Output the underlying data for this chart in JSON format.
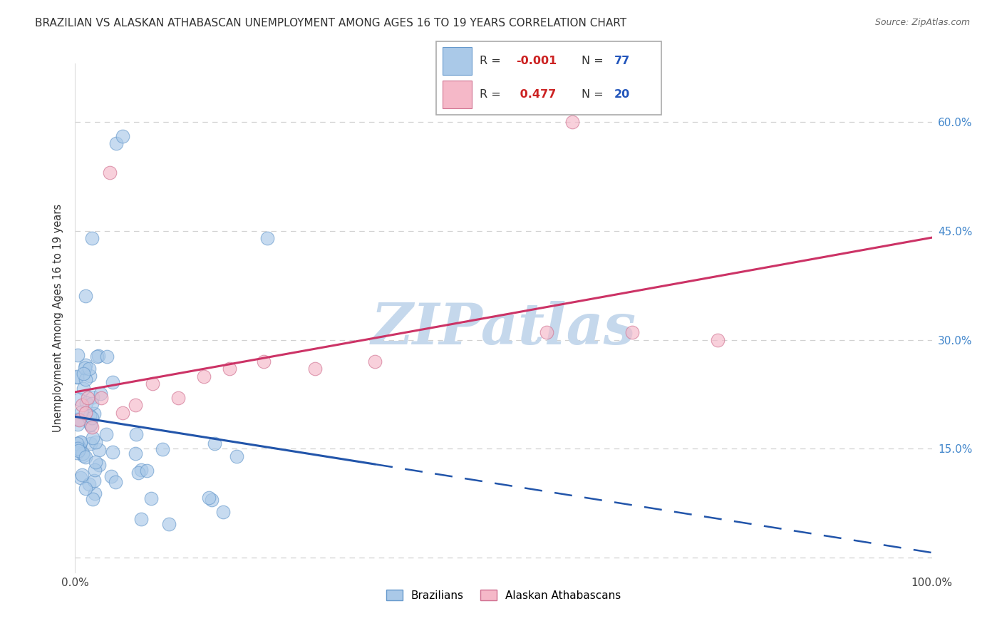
{
  "title": "BRAZILIAN VS ALASKAN ATHABASCAN UNEMPLOYMENT AMONG AGES 16 TO 19 YEARS CORRELATION CHART",
  "source": "Source: ZipAtlas.com",
  "ylabel": "Unemployment Among Ages 16 to 19 years",
  "xlim": [
    0,
    1.0
  ],
  "ylim": [
    -0.02,
    0.68
  ],
  "ytick_positions": [
    0.0,
    0.15,
    0.3,
    0.45,
    0.6
  ],
  "ytick_labels": [
    "",
    "15.0%",
    "30.0%",
    "45.0%",
    "60.0%"
  ],
  "grid_color": "#cccccc",
  "background_color": "#ffffff",
  "watermark": "ZIPatlas",
  "watermark_color": "#c5d8ec",
  "series1_name": "Brazilians",
  "series1_color": "#aac9e8",
  "series1_edge_color": "#6699cc",
  "series2_name": "Alaskan Athabascans",
  "series2_color": "#f5b8c8",
  "series2_edge_color": "#d07090",
  "trend1_color": "#2255aa",
  "trend2_color": "#cc3366",
  "legend_R1": "-0.001",
  "legend_N1": "77",
  "legend_R2": "0.477",
  "legend_N2": "20",
  "legend_text_color": "#333333",
  "legend_R_color": "#cc2222",
  "legend_N_color": "#2255bb"
}
